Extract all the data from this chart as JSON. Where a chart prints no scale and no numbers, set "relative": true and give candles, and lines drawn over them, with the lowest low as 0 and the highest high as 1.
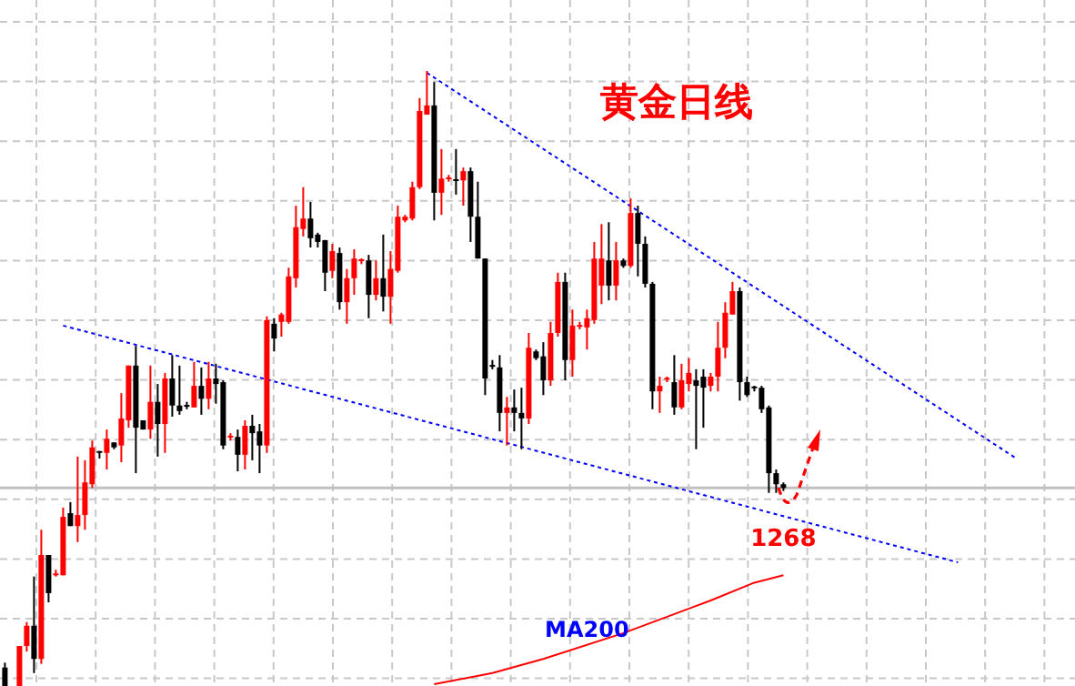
{
  "chart_data": {
    "type": "candlestick",
    "title": "黄金日线",
    "relative": true,
    "grid": true,
    "categories": [
      null,
      null,
      null,
      null,
      null,
      null,
      null,
      null,
      null,
      null,
      null,
      null,
      null,
      null,
      null,
      null,
      null,
      null,
      null,
      null,
      null,
      null,
      null,
      null,
      null,
      null,
      null,
      null,
      null,
      null,
      null,
      null,
      null,
      null,
      null,
      null,
      null,
      null,
      null,
      null,
      null,
      null,
      null,
      null,
      null,
      null,
      null,
      null,
      null,
      null,
      null,
      null,
      null,
      null,
      null,
      null,
      null,
      null,
      null,
      null,
      null,
      null,
      null,
      null,
      null,
      null,
      null,
      null,
      null,
      null,
      null,
      null,
      null,
      null,
      null,
      null,
      null,
      null,
      null,
      null,
      null,
      null,
      null,
      null,
      null,
      null,
      null,
      null,
      null,
      null,
      null,
      null,
      null,
      null,
      null,
      null,
      null,
      null,
      null,
      null,
      null,
      null,
      null,
      null,
      null,
      null,
      null,
      null,
      null,
      null,
      null,
      null,
      null,
      null,
      null,
      null,
      null,
      null,
      null,
      null,
      null,
      null,
      null,
      null,
      null,
      null,
      null,
      null,
      null,
      null,
      null,
      null,
      null,
      null,
      null,
      null,
      null,
      null,
      null,
      null
    ],
    "ohlc": [
      [
        0.03,
        0.038,
        0,
        0
      ],
      null,
      [
        0,
        0.065,
        0,
        0.065
      ],
      [
        0.065,
        0.104,
        0.056,
        0.098
      ],
      [
        0.098,
        0.178,
        0.021,
        0.044
      ],
      [
        0.044,
        0.254,
        0.036,
        0.213
      ],
      [
        0.213,
        0.213,
        0.136,
        0.151
      ],
      [
        0.18,
        0.189,
        0.178,
        0.183
      ],
      [
        0.18,
        0.29,
        0.18,
        0.275
      ],
      [
        0.281,
        0.299,
        0.26,
        0.26
      ],
      [
        0.26,
        0.373,
        0.234,
        0.278
      ],
      [
        0.278,
        0.367,
        0.254,
        0.331
      ],
      [
        0.328,
        0.399,
        0.322,
        0.388
      ],
      [
        0.382,
        0.382,
        0.37,
        0.379
      ],
      [
        0.379,
        0.417,
        0.352,
        0.402
      ],
      [
        0.396,
        0.396,
        0.385,
        0.388
      ],
      [
        0.391,
        0.476,
        0.364,
        0.435
      ],
      [
        0.432,
        0.521,
        0.42,
        0.521
      ],
      [
        0.521,
        0.553,
        0.346,
        0.42
      ],
      [
        0.432,
        0.432,
        0.417,
        0.417
      ],
      [
        0.417,
        0.521,
        0.402,
        0.462
      ],
      [
        0.462,
        0.491,
        0.373,
        0.426
      ],
      [
        0.426,
        0.509,
        0.379,
        0.5
      ],
      [
        0.5,
        0.538,
        0.438,
        0.456
      ],
      [
        0.456,
        0.521,
        0.441,
        0.447
      ],
      [
        0.457,
        0.462,
        0.45,
        0.454
      ],
      [
        0.453,
        0.527,
        0.453,
        0.488
      ],
      [
        0.488,
        0.518,
        0.441,
        0.467
      ],
      [
        0.467,
        0.527,
        0.45,
        0.5
      ],
      [
        0.5,
        0.524,
        0.459,
        0.491
      ],
      [
        0.494,
        0.497,
        0.385,
        0.391
      ],
      [
        0.404,
        0.411,
        0.399,
        0.407
      ],
      [
        0.405,
        0.417,
        0.349,
        0.376
      ],
      [
        0.376,
        0.432,
        0.352,
        0.423
      ],
      [
        0.423,
        0.441,
        0.367,
        0.411
      ],
      [
        0.414,
        0.426,
        0.346,
        0.391
      ],
      [
        0.391,
        0.601,
        0.379,
        0.595
      ],
      [
        0.589,
        0.598,
        0.544,
        0.565
      ],
      [
        0.592,
        0.607,
        0.568,
        0.604
      ],
      [
        0.592,
        0.68,
        0.589,
        0.666
      ],
      [
        0.663,
        0.781,
        0.648,
        0.746
      ],
      [
        0.743,
        0.811,
        0.731,
        0.76
      ],
      [
        0.76,
        0.787,
        0.713,
        0.728
      ],
      [
        0.734,
        0.737,
        0.713,
        0.722
      ],
      [
        0.725,
        0.725,
        0.642,
        0.672
      ],
      [
        0.675,
        0.719,
        0.663,
        0.707
      ],
      [
        0.704,
        0.713,
        0.612,
        0.624
      ],
      [
        0.624,
        0.678,
        0.589,
        0.663
      ],
      [
        0.663,
        0.71,
        0.636,
        0.695
      ],
      [
        0.691,
        0.695,
        0.686,
        0.694
      ],
      [
        0.692,
        0.701,
        0.598,
        0.636
      ],
      [
        0.636,
        0.692,
        0.627,
        0.663
      ],
      [
        0.663,
        0.734,
        0.609,
        0.633
      ],
      [
        0.633,
        0.707,
        0.589,
        0.678
      ],
      [
        0.675,
        0.781,
        0.672,
        0.763
      ],
      [
        0.757,
        0.766,
        0.754,
        0.763
      ],
      [
        0.76,
        0.82,
        0.757,
        0.811
      ],
      [
        0.811,
        0.956,
        0.808,
        0.935
      ],
      [
        0.929,
        1,
        0.929,
        0.944
      ],
      [
        0.944,
        0.982,
        0.757,
        0.802
      ],
      [
        0.802,
        0.873,
        0.766,
        0.825
      ],
      [
        0.824,
        0.831,
        0.82,
        0.827
      ],
      [
        0.824,
        0.873,
        0.799,
        0.821
      ],
      [
        0.822,
        0.843,
        0.781,
        0.837
      ],
      [
        0.837,
        0.843,
        0.722,
        0.763
      ],
      [
        0.763,
        0.82,
        0.695,
        0.695
      ],
      [
        0.695,
        0.695,
        0.473,
        0.5
      ],
      [
        0.522,
        0.53,
        0.515,
        0.519
      ],
      [
        0.518,
        0.538,
        0.414,
        0.444
      ],
      [
        0.444,
        0.47,
        0.391,
        0.453
      ],
      [
        0.453,
        0.482,
        0.414,
        0.444
      ],
      [
        0.444,
        0.485,
        0.385,
        0.435
      ],
      [
        0.435,
        0.574,
        0.426,
        0.55
      ],
      [
        0.544,
        0.547,
        0.53,
        0.533
      ],
      [
        0.536,
        0.559,
        0.473,
        0.497
      ],
      [
        0.497,
        0.592,
        0.488,
        0.574
      ],
      [
        0.574,
        0.672,
        0.568,
        0.657
      ],
      [
        0.657,
        0.672,
        0.497,
        0.53
      ],
      [
        0.53,
        0.612,
        0.503,
        0.586
      ],
      [
        0.584,
        0.592,
        0.58,
        0.587
      ],
      [
        0.583,
        0.612,
        0.547,
        0.598
      ],
      [
        0.595,
        0.722,
        0.589,
        0.695
      ],
      [
        0.651,
        0.751,
        0.621,
        0.695
      ],
      [
        0.692,
        0.754,
        0.627,
        0.651
      ],
      [
        0.651,
        0.722,
        0.627,
        0.692
      ],
      [
        0.692,
        0.695,
        0.68,
        0.683
      ],
      [
        0.683,
        0.793,
        0.68,
        0.769
      ],
      [
        0.769,
        0.781,
        0.666,
        0.719
      ],
      [
        0.719,
        0.731,
        0.648,
        0.654
      ],
      [
        0.654,
        0.657,
        0.45,
        0.479
      ],
      [
        0.479,
        0.503,
        0.444,
        0.488
      ],
      [
        0.499,
        0.503,
        0.494,
        0.501
      ],
      [
        0.494,
        0.538,
        0.441,
        0.453
      ],
      [
        0.453,
        0.524,
        0.45,
        0.497
      ],
      [
        0.491,
        0.533,
        0.479,
        0.509
      ],
      [
        0.497,
        0.515,
        0.385,
        0.488
      ],
      [
        0.503,
        0.515,
        0.42,
        0.485
      ],
      [
        0.488,
        0.509,
        0.479,
        0.503
      ],
      [
        0.503,
        0.592,
        0.479,
        0.55
      ],
      [
        0.55,
        0.624,
        0.533,
        0.607
      ],
      [
        0.604,
        0.657,
        0.604,
        0.642
      ],
      [
        0.642,
        0.648,
        0.464,
        0.494
      ],
      [
        0.494,
        0.503,
        0.47,
        0.473
      ],
      [
        0.487,
        0.488,
        0.479,
        0.484
      ],
      [
        0.485,
        0.488,
        0.444,
        0.45
      ],
      [
        0.453,
        0.456,
        0.314,
        0.346
      ],
      [
        0.346,
        0.352,
        0.314,
        0.328
      ],
      [
        0.328,
        0.331,
        0.317,
        0.322
      ],
      null,
      null,
      null,
      null,
      null,
      null,
      null,
      null,
      null,
      null,
      null,
      null,
      null,
      null,
      null,
      null,
      null,
      null,
      null,
      null,
      null,
      null,
      null,
      null,
      null,
      null,
      null,
      null,
      null,
      null,
      null,
      null
    ],
    "colors": [
      "#000000",
      null,
      "#ff0000",
      "#ff0000",
      "#000000",
      "#ff0000",
      "#000000",
      "#ff0000",
      "#ff0000",
      "#000000",
      "#ff0000",
      "#ff0000",
      "#ff0000",
      "#000000",
      "#ff0000",
      "#000000",
      "#ff0000",
      "#ff0000",
      "#000000",
      "#000000",
      "#ff0000",
      "#000000",
      "#ff0000",
      "#000000",
      "#000000",
      "#000000",
      "#ff0000",
      "#000000",
      "#ff0000",
      "#000000",
      "#000000",
      "#ff0000",
      "#000000",
      "#ff0000",
      "#000000",
      "#000000",
      "#ff0000",
      "#000000",
      "#ff0000",
      "#ff0000",
      "#ff0000",
      "#ff0000",
      "#000000",
      "#000000",
      "#000000",
      "#ff0000",
      "#000000",
      "#ff0000",
      "#ff0000",
      "#ff0000",
      "#000000",
      "#ff0000",
      "#000000",
      "#ff0000",
      "#ff0000",
      "#ff0000",
      "#ff0000",
      "#ff0000",
      "#ff0000",
      "#000000",
      "#ff0000",
      "#ff0000",
      "#000000",
      "#ff0000",
      "#000000",
      "#000000",
      "#000000",
      "#000000",
      "#000000",
      "#ff0000",
      "#000000",
      "#000000",
      "#ff0000",
      "#000000",
      "#000000",
      "#ff0000",
      "#ff0000",
      "#000000",
      "#ff0000",
      "#ff0000",
      "#ff0000",
      "#ff0000",
      "#ff0000",
      "#000000",
      "#ff0000",
      "#000000",
      "#ff0000",
      "#000000",
      "#000000",
      "#000000",
      "#ff0000",
      "#ff0000",
      "#000000",
      "#ff0000",
      "#ff0000",
      "#000000",
      "#000000",
      "#ff0000",
      "#ff0000",
      "#ff0000",
      "#ff0000",
      "#000000",
      "#000000",
      "#000000",
      "#000000",
      "#000000",
      "#000000",
      "#000000",
      null,
      null,
      null,
      null,
      null,
      null,
      null,
      null,
      null,
      null,
      null,
      null,
      null,
      null,
      null,
      null,
      null,
      null,
      null,
      null,
      null,
      null,
      null,
      null,
      null,
      null,
      null,
      null,
      null,
      null,
      null,
      null
    ],
    "series": [
      {
        "type": "line",
        "color": "#0000ff",
        "line_style": "dotted",
        "values": [
          null,
          null,
          null,
          null,
          null,
          null,
          null,
          null,
          null,
          null,
          null,
          null,
          null,
          null,
          null,
          null,
          null,
          null,
          null,
          null,
          null,
          null,
          null,
          null,
          null,
          null,
          null,
          null,
          null,
          null,
          null,
          null,
          null,
          null,
          null,
          null,
          null,
          null,
          null,
          null,
          null,
          null,
          null,
          null,
          null,
          null,
          null,
          null,
          null,
          null,
          null,
          null,
          null,
          null,
          null,
          null,
          null,
          null,
          0.997,
          null,
          null,
          null,
          null,
          null,
          null,
          null,
          null,
          null,
          null,
          null,
          null,
          null,
          null,
          null,
          null,
          null,
          null,
          null,
          null,
          null,
          null,
          null,
          null,
          null,
          null,
          null,
          null,
          null,
          null,
          null,
          null,
          null,
          null,
          null,
          null,
          null,
          null,
          null,
          null,
          null,
          null,
          null,
          null,
          null,
          null,
          null,
          null,
          null,
          null,
          null,
          null,
          null,
          null,
          null,
          null,
          null,
          null,
          null,
          null,
          null,
          null,
          null,
          null,
          null,
          null,
          null,
          null,
          null,
          null,
          null,
          null,
          null,
          null,
          null,
          null,
          null,
          null,
          null,
          null,
          0.37
        ]
      },
      {
        "type": "line",
        "color": "#0000ff",
        "line_style": "dotted",
        "values": [
          null,
          null,
          null,
          null,
          null,
          null,
          null,
          null,
          0.586,
          null,
          null,
          null,
          null,
          null,
          null,
          null,
          null,
          null,
          null,
          null,
          null,
          null,
          null,
          null,
          null,
          null,
          null,
          null,
          null,
          null,
          null,
          null,
          null,
          null,
          null,
          null,
          null,
          null,
          null,
          null,
          null,
          null,
          null,
          null,
          null,
          null,
          null,
          null,
          null,
          null,
          null,
          null,
          null,
          null,
          null,
          null,
          null,
          null,
          null,
          null,
          null,
          null,
          null,
          null,
          null,
          null,
          null,
          null,
          null,
          null,
          null,
          null,
          null,
          null,
          null,
          null,
          null,
          null,
          null,
          null,
          null,
          null,
          null,
          null,
          null,
          null,
          null,
          null,
          null,
          null,
          null,
          null,
          null,
          null,
          null,
          null,
          null,
          null,
          null,
          null,
          null,
          null,
          null,
          null,
          null,
          null,
          null,
          null,
          null,
          null,
          null,
          null,
          null,
          null,
          null,
          null,
          null,
          null,
          null,
          null,
          null,
          null,
          null,
          null,
          null,
          null,
          null,
          null,
          null,
          null,
          null,
          0.201,
          null,
          null,
          null,
          null,
          null,
          null,
          null,
          null
        ]
      },
      {
        "type": "line",
        "name": "MA200",
        "color": "#ff0000",
        "line_style": "solid",
        "values": [
          null,
          null,
          null,
          null,
          null,
          null,
          null,
          null,
          null,
          null,
          null,
          null,
          null,
          null,
          null,
          null,
          null,
          null,
          null,
          null,
          null,
          null,
          null,
          null,
          null,
          null,
          null,
          null,
          null,
          null,
          null,
          null,
          null,
          null,
          null,
          null,
          null,
          null,
          null,
          null,
          null,
          null,
          null,
          null,
          null,
          null,
          null,
          null,
          null,
          null,
          null,
          null,
          null,
          null,
          null,
          null,
          null,
          null,
          null,
          0.003,
          null,
          null,
          null,
          null,
          null,
          null,
          null,
          0.021,
          null,
          null,
          null,
          null,
          null,
          null,
          0.044,
          null,
          null,
          null,
          null,
          null,
          null,
          null,
          null,
          null,
          null,
          0.086,
          null,
          null,
          null,
          null,
          null,
          null,
          null,
          null,
          null,
          null,
          null,
          0.139,
          null,
          null,
          null,
          null,
          null,
          0.168,
          null,
          null,
          null,
          0.18,
          null,
          null,
          null,
          null,
          null,
          null,
          null,
          null,
          null,
          null,
          null,
          null,
          null,
          null,
          null,
          null,
          null,
          null,
          null,
          null,
          null,
          null,
          null,
          null,
          null,
          null,
          null,
          null,
          null,
          null,
          null,
          null
        ]
      }
    ],
    "ref_lines": [
      {
        "axis": "y",
        "value": 0.322,
        "color": "#c0c0c0",
        "line_style": "solid"
      }
    ],
    "annotations": [
      "1268"
    ]
  }
}
